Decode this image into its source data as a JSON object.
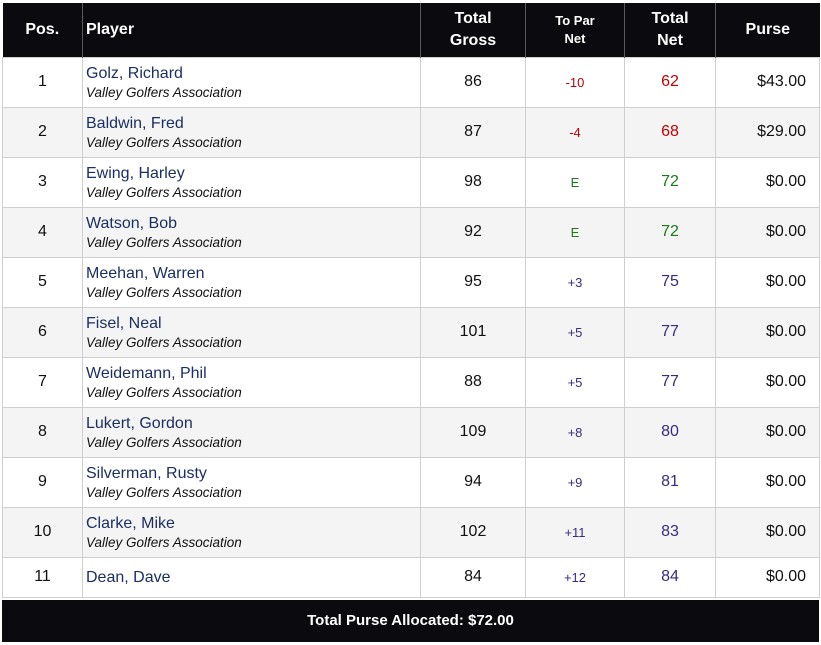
{
  "headers": {
    "pos": "Pos.",
    "player": "Player",
    "gross_line1": "Total",
    "gross_line2": "Gross",
    "topar_line1": "To Par",
    "topar_line2": "Net",
    "net_line1": "Total",
    "net_line2": "Net",
    "purse": "Purse"
  },
  "rows": [
    {
      "pos": "1",
      "name": "Golz, Richard",
      "club": "Valley Golfers Association",
      "gross": "86",
      "topar": "-10",
      "net": "62",
      "purse": "$43.00",
      "status": "neg"
    },
    {
      "pos": "2",
      "name": "Baldwin, Fred",
      "club": "Valley Golfers Association",
      "gross": "87",
      "topar": "-4",
      "net": "68",
      "purse": "$29.00",
      "status": "neg"
    },
    {
      "pos": "3",
      "name": "Ewing, Harley",
      "club": "Valley Golfers Association",
      "gross": "98",
      "topar": "E",
      "net": "72",
      "purse": "$0.00",
      "status": "even"
    },
    {
      "pos": "4",
      "name": "Watson, Bob",
      "club": "Valley Golfers Association",
      "gross": "92",
      "topar": "E",
      "net": "72",
      "purse": "$0.00",
      "status": "even"
    },
    {
      "pos": "5",
      "name": "Meehan, Warren",
      "club": "Valley Golfers Association",
      "gross": "95",
      "topar": "+3",
      "net": "75",
      "purse": "$0.00",
      "status": "over"
    },
    {
      "pos": "6",
      "name": "Fisel, Neal",
      "club": "Valley Golfers Association",
      "gross": "101",
      "topar": "+5",
      "net": "77",
      "purse": "$0.00",
      "status": "over"
    },
    {
      "pos": "7",
      "name": "Weidemann, Phil",
      "club": "Valley Golfers Association",
      "gross": "88",
      "topar": "+5",
      "net": "77",
      "purse": "$0.00",
      "status": "over"
    },
    {
      "pos": "8",
      "name": "Lukert, Gordon",
      "club": "Valley Golfers Association",
      "gross": "109",
      "topar": "+8",
      "net": "80",
      "purse": "$0.00",
      "status": "over"
    },
    {
      "pos": "9",
      "name": "Silverman, Rusty",
      "club": "Valley Golfers Association",
      "gross": "94",
      "topar": "+9",
      "net": "81",
      "purse": "$0.00",
      "status": "over"
    },
    {
      "pos": "10",
      "name": "Clarke, Mike",
      "club": "Valley Golfers Association",
      "gross": "102",
      "topar": "+11",
      "net": "83",
      "purse": "$0.00",
      "status": "over"
    },
    {
      "pos": "11",
      "name": "Dean, Dave",
      "club": "",
      "gross": "84",
      "topar": "+12",
      "net": "84",
      "purse": "$0.00",
      "status": "over"
    }
  ],
  "footer": {
    "text": "Total Purse Allocated: $72.00"
  },
  "colors": {
    "header_bg": "#0b0b0f",
    "name": "#1c2f63",
    "under_par": "#c00000",
    "even_par": "#1a7a1a",
    "over_par": "#3a2a80"
  }
}
